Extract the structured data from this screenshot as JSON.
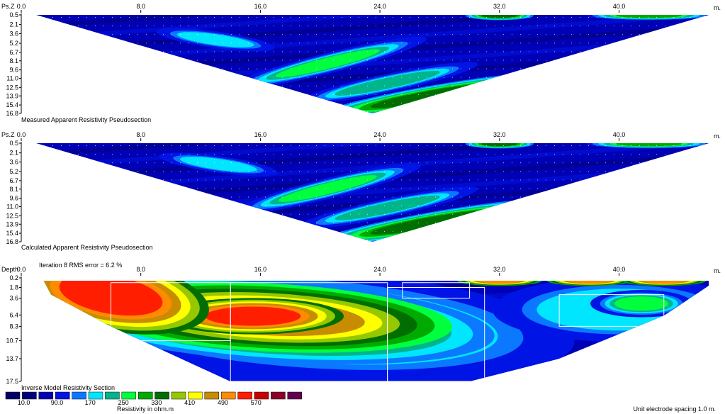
{
  "chart_data": [
    {
      "type": "heatmap",
      "title": "Measured Apparent Resistivity Pseudosection",
      "yaxis_label": "Ps.Z",
      "xaxis_unit": "m.",
      "x_ticks": [
        "0.0",
        "8.0",
        "16.0",
        "24.0",
        "32.0",
        "40.0"
      ],
      "y_ticks": [
        "0.5",
        "2.1",
        "3.6",
        "5.2",
        "6.7",
        "8.1",
        "9.6",
        "11.0",
        "12.5",
        "13.9",
        "15.4",
        "16.8"
      ],
      "xlim": [
        0,
        46
      ],
      "ylim": [
        0.5,
        16.8
      ],
      "shape": "triangle",
      "anomalies": [
        {
          "x": 13.0,
          "z": 4.6,
          "rx": 2.6,
          "rz": 0.9,
          "level": 5,
          "rot": 8
        },
        {
          "x": 20.5,
          "z": 8.5,
          "rx": 3.6,
          "rz": 0.9,
          "level": 7,
          "rot": -14
        },
        {
          "x": 24.5,
          "z": 11.8,
          "rx": 3.6,
          "rz": 0.9,
          "level": 6,
          "rot": -12
        },
        {
          "x": 27.5,
          "z": 13.9,
          "rx": 4.2,
          "rz": 0.9,
          "level": 9,
          "rot": -10
        },
        {
          "x": 32.0,
          "z": 0.6,
          "rx": 1.2,
          "rz": 0.4,
          "level": 9,
          "rot": 0
        },
        {
          "x": 42.0,
          "z": 0.6,
          "rx": 2.2,
          "rz": 0.4,
          "level": 8,
          "rot": 0
        }
      ]
    },
    {
      "type": "heatmap",
      "title": "Calculated Apparent Resistivity Pseudosection",
      "yaxis_label": "Ps.Z",
      "xaxis_unit": "m.",
      "x_ticks": [
        "0.0",
        "8.0",
        "16.0",
        "24.0",
        "32.0",
        "40.0"
      ],
      "y_ticks": [
        "0.5",
        "2.1",
        "3.6",
        "5.2",
        "6.7",
        "8.1",
        "9.6",
        "11.0",
        "12.5",
        "13.9",
        "15.4",
        "16.8"
      ],
      "xlim": [
        0,
        46
      ],
      "ylim": [
        0.5,
        16.8
      ],
      "shape": "triangle",
      "anomalies": [
        {
          "x": 13.2,
          "z": 4.0,
          "rx": 2.6,
          "rz": 0.9,
          "level": 5,
          "rot": 8
        },
        {
          "x": 20.5,
          "z": 8.0,
          "rx": 3.4,
          "rz": 0.9,
          "level": 7,
          "rot": -14
        },
        {
          "x": 24.5,
          "z": 11.2,
          "rx": 3.6,
          "rz": 0.9,
          "level": 6,
          "rot": -12
        },
        {
          "x": 27.5,
          "z": 13.6,
          "rx": 4.2,
          "rz": 0.9,
          "level": 9,
          "rot": -10
        },
        {
          "x": 32.0,
          "z": 0.6,
          "rx": 1.2,
          "rz": 0.4,
          "level": 9,
          "rot": 0
        },
        {
          "x": 42.0,
          "z": 0.6,
          "rx": 2.2,
          "rz": 0.4,
          "level": 8,
          "rot": 0
        }
      ]
    },
    {
      "type": "heatmap",
      "title": "Inverse Model Resistivity Section",
      "subtitle": "Iteration 8 RMS error = 6.2 %",
      "yaxis_label": "Depth",
      "xaxis_unit": "m.",
      "x_ticks": [
        "0.0",
        "8.0",
        "16.0",
        "24.0",
        "32.0",
        "40.0"
      ],
      "y_ticks": [
        "0.2",
        "1.8",
        "3.6",
        "6.4",
        "8.3",
        "10.7",
        "13.7",
        "17.5"
      ],
      "xlim": [
        0,
        46
      ],
      "ylim": [
        0.2,
        17.5
      ],
      "shape": "trapezoid",
      "anomalies": [
        {
          "x": 17.5,
          "z": 8.5,
          "rx": 12.0,
          "rz": 6.5,
          "level": 5,
          "rot": 6
        },
        {
          "x": 19.0,
          "z": 7.8,
          "rx": 9.5,
          "rz": 4.8,
          "level": 7,
          "rot": 4
        },
        {
          "x": 16.5,
          "z": 7.3,
          "rx": 8.0,
          "rz": 3.6,
          "level": 9,
          "rot": 4
        },
        {
          "x": 16.5,
          "z": 6.8,
          "rx": 6.5,
          "rz": 3.0,
          "level": 12,
          "rot": 3
        },
        {
          "x": 15.5,
          "z": 6.6,
          "rx": 3.2,
          "rz": 1.6,
          "level": 14,
          "rot": 0
        },
        {
          "x": 6.0,
          "z": 3.0,
          "rx": 3.5,
          "rz": 3.2,
          "level": 14,
          "rot": 10
        },
        {
          "x": 40.0,
          "z": 5.5,
          "rx": 5.5,
          "rz": 3.5,
          "level": 5,
          "rot": 0
        },
        {
          "x": 41.5,
          "z": 4.5,
          "rx": 1.8,
          "rz": 1.2,
          "level": 7,
          "rot": 0
        },
        {
          "x": 25.0,
          "z": 3.0,
          "rx": 3.0,
          "rz": 1.4,
          "level": 1,
          "rot": 0
        },
        {
          "x": 32.0,
          "z": 0.6,
          "rx": 1.5,
          "rz": 0.5,
          "level": 13,
          "rot": 0
        },
        {
          "x": 38.0,
          "z": 0.6,
          "rx": 1.5,
          "rz": 0.5,
          "level": 13,
          "rot": 0
        },
        {
          "x": 43.0,
          "z": 0.6,
          "rx": 1.5,
          "rz": 0.5,
          "level": 13,
          "rot": 0
        }
      ]
    }
  ],
  "legend": {
    "title": "Resistivity in ohm.m",
    "colors": [
      "#000066",
      "#00007a",
      "#0000b4",
      "#0014e6",
      "#0a78ff",
      "#00e6ff",
      "#00b48c",
      "#00ff3c",
      "#00aa00",
      "#006e00",
      "#96c800",
      "#ffff00",
      "#c88c00",
      "#ff8c00",
      "#ff1e00",
      "#c80000",
      "#8c0028",
      "#640050"
    ],
    "labels": [
      "10.0",
      "90.0",
      "170",
      "250",
      "330",
      "410",
      "490",
      "570"
    ]
  },
  "footer": {
    "spacing": "Unit electrode spacing 1.0 m."
  }
}
